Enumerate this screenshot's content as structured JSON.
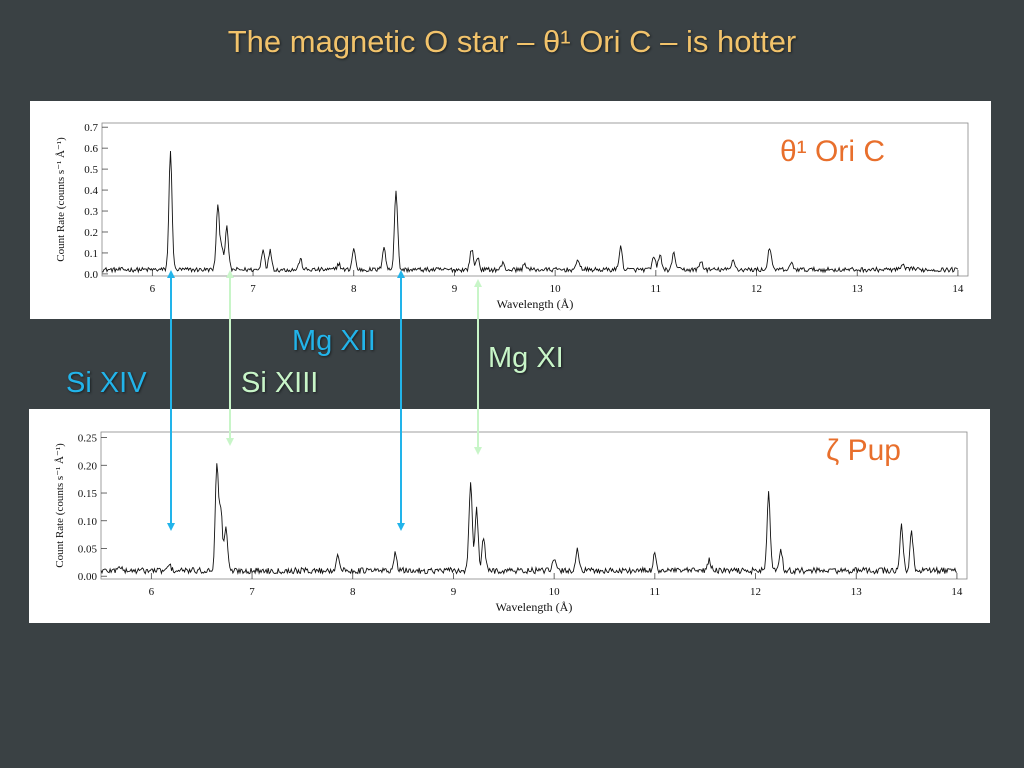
{
  "slide": {
    "title": "The magnetic O star – θ¹ Ori C – is hotter"
  },
  "colors": {
    "background": "#3a4144",
    "title": "#f2c36b",
    "star_label": "#e86f2c",
    "si_xiv_mg_xii_arrow": "#22b4ea",
    "si_xiii_mg_xi_arrow": "#c8f5c8",
    "spectrum_line": "#111111"
  },
  "ion_labels": [
    {
      "text": "Si XIV",
      "color": "#22b4ea"
    },
    {
      "text": "Si XIII",
      "color": "#c8f5c8"
    },
    {
      "text": "Mg XII",
      "color": "#22b4ea"
    },
    {
      "text": "Mg XI",
      "color": "#c8f5c8"
    }
  ],
  "chart_data": [
    {
      "type": "line",
      "star_label": "θ¹ Ori C",
      "xlabel": "Wavelength (Å)",
      "ylabel": "Count Rate (counts s⁻¹ Å⁻¹)",
      "xlim": [
        5.5,
        14.1
      ],
      "ylim": [
        -0.01,
        0.72
      ],
      "xticks": [
        6,
        7,
        8,
        9,
        10,
        11,
        12,
        13,
        14
      ],
      "yticks": [
        "0.0",
        "0.1",
        "0.2",
        "0.3",
        "0.4",
        "0.5",
        "0.6",
        "0.7"
      ],
      "baseline": 0.02,
      "lines": [
        {
          "x": 6.18,
          "y": 0.58
        },
        {
          "x": 6.65,
          "y": 0.32
        },
        {
          "x": 6.69,
          "y": 0.13
        },
        {
          "x": 6.74,
          "y": 0.22
        },
        {
          "x": 7.1,
          "y": 0.12
        },
        {
          "x": 7.17,
          "y": 0.11
        },
        {
          "x": 7.47,
          "y": 0.07
        },
        {
          "x": 7.85,
          "y": 0.05
        },
        {
          "x": 8.0,
          "y": 0.12
        },
        {
          "x": 8.3,
          "y": 0.13
        },
        {
          "x": 8.42,
          "y": 0.4
        },
        {
          "x": 9.17,
          "y": 0.12
        },
        {
          "x": 9.23,
          "y": 0.08
        },
        {
          "x": 9.48,
          "y": 0.05
        },
        {
          "x": 9.7,
          "y": 0.05
        },
        {
          "x": 10.23,
          "y": 0.07
        },
        {
          "x": 10.65,
          "y": 0.13
        },
        {
          "x": 10.98,
          "y": 0.08
        },
        {
          "x": 11.04,
          "y": 0.09
        },
        {
          "x": 11.18,
          "y": 0.1
        },
        {
          "x": 11.45,
          "y": 0.06
        },
        {
          "x": 11.77,
          "y": 0.07
        },
        {
          "x": 12.13,
          "y": 0.13
        },
        {
          "x": 12.35,
          "y": 0.05
        },
        {
          "x": 13.45,
          "y": 0.04
        },
        {
          "x": 13.55,
          "y": 0.03
        }
      ]
    },
    {
      "type": "line",
      "star_label": "ζ Pup",
      "xlabel": "Wavelength (Å)",
      "ylabel": "Count Rate (counts s⁻¹ Å⁻¹)",
      "xlim": [
        5.5,
        14.1
      ],
      "ylim": [
        -0.005,
        0.26
      ],
      "xticks": [
        6,
        7,
        8,
        9,
        10,
        11,
        12,
        13,
        14
      ],
      "yticks": [
        "0.00",
        "0.05",
        "0.10",
        "0.15",
        "0.20",
        "0.25"
      ],
      "baseline": 0.01,
      "lines": [
        {
          "x": 5.68,
          "y": 0.02
        },
        {
          "x": 6.18,
          "y": 0.02
        },
        {
          "x": 6.65,
          "y": 0.2
        },
        {
          "x": 6.69,
          "y": 0.12
        },
        {
          "x": 6.74,
          "y": 0.09
        },
        {
          "x": 7.85,
          "y": 0.04
        },
        {
          "x": 8.42,
          "y": 0.04
        },
        {
          "x": 9.17,
          "y": 0.17
        },
        {
          "x": 9.23,
          "y": 0.12
        },
        {
          "x": 9.3,
          "y": 0.07
        },
        {
          "x": 10.0,
          "y": 0.03
        },
        {
          "x": 10.23,
          "y": 0.05
        },
        {
          "x": 11.0,
          "y": 0.04
        },
        {
          "x": 11.54,
          "y": 0.03
        },
        {
          "x": 12.13,
          "y": 0.15
        },
        {
          "x": 12.25,
          "y": 0.05
        },
        {
          "x": 13.45,
          "y": 0.09
        },
        {
          "x": 13.55,
          "y": 0.08
        }
      ]
    }
  ]
}
